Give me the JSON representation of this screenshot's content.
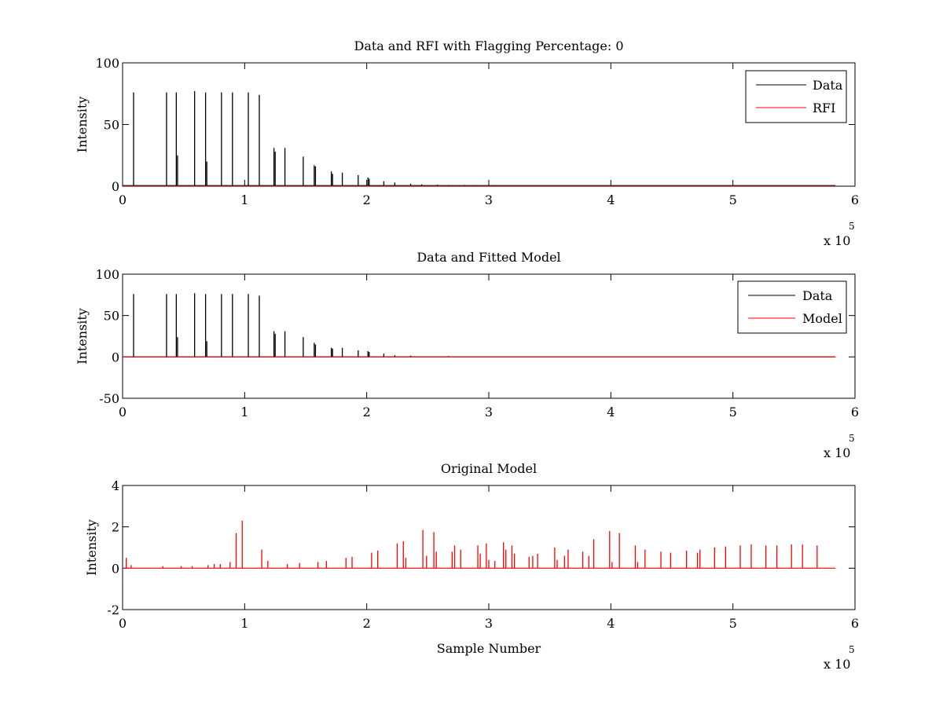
{
  "figure": {
    "background": "#ffffff"
  },
  "chart_data": [
    {
      "type": "line",
      "title": "Data and RFI with Flagging Percentage: 0",
      "xlabel": "",
      "ylabel": "Intensity",
      "xlim": [
        0,
        6
      ],
      "ylim": [
        0,
        100
      ],
      "xticks": [
        "0",
        "1",
        "2",
        "3",
        "4",
        "5",
        "6"
      ],
      "yticks": [
        "0",
        "50",
        "100"
      ],
      "yticks_values": [
        0,
        50,
        100
      ],
      "x_multiplier": {
        "base": "x 10",
        "exponent": "5"
      },
      "grid": false,
      "legend_position": "top-right",
      "series": [
        {
          "name": "Data",
          "color": "#000000",
          "baseline": 0.5,
          "spikes": [
            [
              0.09,
              76
            ],
            [
              0.36,
              76
            ],
            [
              0.44,
              76
            ],
            [
              0.45,
              25
            ],
            [
              0.59,
              77
            ],
            [
              0.68,
              76
            ],
            [
              0.69,
              20
            ],
            [
              0.81,
              76
            ],
            [
              0.9,
              76
            ],
            [
              1.03,
              76
            ],
            [
              1.12,
              74
            ],
            [
              1.24,
              31
            ],
            [
              1.25,
              28
            ],
            [
              1.33,
              31
            ],
            [
              1.48,
              24
            ],
            [
              1.57,
              17
            ],
            [
              1.58,
              16
            ],
            [
              1.71,
              12
            ],
            [
              1.72,
              10
            ],
            [
              1.8,
              11
            ],
            [
              1.93,
              9
            ],
            [
              2.01,
              7
            ],
            [
              2.02,
              6
            ],
            [
              2.14,
              4
            ],
            [
              2.23,
              3
            ],
            [
              2.36,
              2
            ],
            [
              2.45,
              1.5
            ],
            [
              2.58,
              1.2
            ],
            [
              2.67,
              1
            ],
            [
              2.8,
              1
            ],
            [
              2.89,
              0.8
            ],
            [
              3.02,
              0.8
            ],
            [
              3.11,
              0.7
            ],
            [
              3.24,
              0.6
            ],
            [
              3.33,
              0.6
            ],
            [
              3.46,
              0.5
            ],
            [
              3.55,
              0.5
            ],
            [
              3.68,
              0.5
            ],
            [
              3.77,
              0.5
            ],
            [
              3.9,
              0.5
            ],
            [
              3.99,
              0.5
            ],
            [
              4.12,
              0.5
            ],
            [
              4.21,
              0.5
            ],
            [
              4.34,
              0.5
            ],
            [
              4.43,
              0.5
            ],
            [
              4.56,
              0.5
            ],
            [
              4.65,
              0.5
            ],
            [
              4.78,
              0.5
            ],
            [
              4.87,
              0.5
            ],
            [
              5.0,
              0.5
            ],
            [
              5.09,
              0.5
            ],
            [
              5.22,
              0.5
            ],
            [
              5.31,
              0.5
            ],
            [
              5.44,
              0.5
            ],
            [
              5.53,
              0.5
            ],
            [
              5.66,
              0.5
            ]
          ]
        },
        {
          "name": "RFI",
          "color": "#ff0000",
          "baseline": 0,
          "spikes": []
        }
      ]
    },
    {
      "type": "line",
      "title": "Data and Fitted Model",
      "xlabel": "",
      "ylabel": "Intensity",
      "xlim": [
        0,
        6
      ],
      "ylim": [
        -50,
        100
      ],
      "xticks": [
        "0",
        "1",
        "2",
        "3",
        "4",
        "5",
        "6"
      ],
      "yticks": [
        "-50",
        "0",
        "50",
        "100"
      ],
      "yticks_values": [
        -50,
        0,
        50,
        100
      ],
      "x_multiplier": {
        "base": "x 10",
        "exponent": "5"
      },
      "grid": false,
      "legend_position": "top-right",
      "series": [
        {
          "name": "Data",
          "color": "#000000",
          "baseline": 0,
          "spikes": [
            [
              0.09,
              76
            ],
            [
              0.36,
              76
            ],
            [
              0.44,
              76
            ],
            [
              0.45,
              24
            ],
            [
              0.59,
              77
            ],
            [
              0.68,
              76
            ],
            [
              0.69,
              19
            ],
            [
              0.81,
              76
            ],
            [
              0.9,
              76
            ],
            [
              1.03,
              76
            ],
            [
              1.12,
              74
            ],
            [
              1.24,
              31
            ],
            [
              1.25,
              28
            ],
            [
              1.33,
              31
            ],
            [
              1.48,
              24
            ],
            [
              1.57,
              17
            ],
            [
              1.58,
              15
            ],
            [
              1.71,
              11
            ],
            [
              1.72,
              10
            ],
            [
              1.8,
              11
            ],
            [
              1.93,
              8
            ],
            [
              2.01,
              7
            ],
            [
              2.02,
              6
            ],
            [
              2.14,
              4
            ],
            [
              2.23,
              2
            ],
            [
              2.36,
              1.5
            ],
            [
              2.67,
              1
            ]
          ]
        },
        {
          "name": "Model",
          "color": "#ff0000",
          "baseline": 0,
          "spikes": []
        }
      ]
    },
    {
      "type": "line",
      "title": "Original Model",
      "xlabel": "Sample Number",
      "ylabel": "Intensity",
      "xlim": [
        0,
        6
      ],
      "ylim": [
        -2,
        4
      ],
      "xticks": [
        "0",
        "1",
        "2",
        "3",
        "4",
        "5",
        "6"
      ],
      "yticks": [
        "-2",
        "0",
        "2",
        "4"
      ],
      "yticks_values": [
        -2,
        0,
        2,
        4
      ],
      "x_multiplier": {
        "base": "x 10",
        "exponent": "5"
      },
      "grid": false,
      "legend_position": "none",
      "series": [
        {
          "name": "",
          "color": "#ff0000",
          "baseline": 0,
          "spikes": [
            [
              0.03,
              0.5
            ],
            [
              0.07,
              0.15
            ],
            [
              0.33,
              0.1
            ],
            [
              0.48,
              0.1
            ],
            [
              0.57,
              0.1
            ],
            [
              0.7,
              0.15
            ],
            [
              0.75,
              0.2
            ],
            [
              0.8,
              0.2
            ],
            [
              0.88,
              0.3
            ],
            [
              0.93,
              1.7
            ],
            [
              0.98,
              2.3
            ],
            [
              1.14,
              0.9
            ],
            [
              1.19,
              0.35
            ],
            [
              1.35,
              0.2
            ],
            [
              1.45,
              0.25
            ],
            [
              1.6,
              0.3
            ],
            [
              1.67,
              0.35
            ],
            [
              1.83,
              0.5
            ],
            [
              1.88,
              0.55
            ],
            [
              2.04,
              0.75
            ],
            [
              2.09,
              0.85
            ],
            [
              2.25,
              1.2
            ],
            [
              2.3,
              1.3
            ],
            [
              2.32,
              0.5
            ],
            [
              2.46,
              1.85
            ],
            [
              2.49,
              0.6
            ],
            [
              2.55,
              1.75
            ],
            [
              2.57,
              0.8
            ],
            [
              2.7,
              0.8
            ],
            [
              2.72,
              1.1
            ],
            [
              2.77,
              0.9
            ],
            [
              2.91,
              1.1
            ],
            [
              2.93,
              0.7
            ],
            [
              2.98,
              1.2
            ],
            [
              3.0,
              0.4
            ],
            [
              3.05,
              0.35
            ],
            [
              3.12,
              1.25
            ],
            [
              3.14,
              0.9
            ],
            [
              3.19,
              1.1
            ],
            [
              3.21,
              0.7
            ],
            [
              3.33,
              0.55
            ],
            [
              3.36,
              0.6
            ],
            [
              3.4,
              0.7
            ],
            [
              3.54,
              1.0
            ],
            [
              3.56,
              0.4
            ],
            [
              3.62,
              0.6
            ],
            [
              3.65,
              0.9
            ],
            [
              3.77,
              0.8
            ],
            [
              3.82,
              0.6
            ],
            [
              3.86,
              1.4
            ],
            [
              3.99,
              1.8
            ],
            [
              4.01,
              0.3
            ],
            [
              4.07,
              1.7
            ],
            [
              4.2,
              1.1
            ],
            [
              4.22,
              0.3
            ],
            [
              4.28,
              0.9
            ],
            [
              4.41,
              0.8
            ],
            [
              4.49,
              0.75
            ],
            [
              4.62,
              0.85
            ],
            [
              4.71,
              0.75
            ],
            [
              4.73,
              0.9
            ],
            [
              4.85,
              1.0
            ],
            [
              4.94,
              1.05
            ],
            [
              5.06,
              1.1
            ],
            [
              5.15,
              1.15
            ],
            [
              5.27,
              1.1
            ],
            [
              5.36,
              1.1
            ],
            [
              5.48,
              1.15
            ],
            [
              5.57,
              1.15
            ],
            [
              5.69,
              1.1
            ]
          ]
        }
      ]
    }
  ]
}
